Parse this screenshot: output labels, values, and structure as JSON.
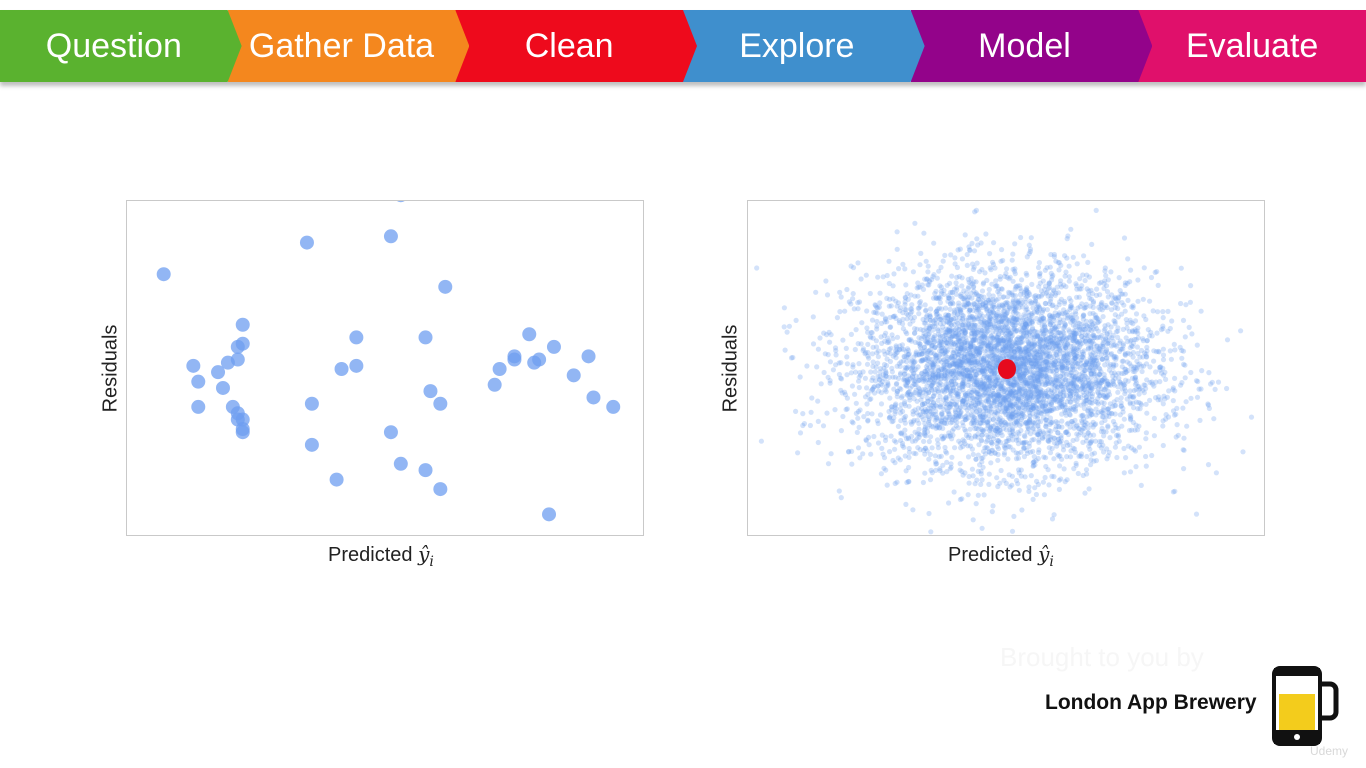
{
  "header": {
    "steps": [
      {
        "label": "Question",
        "color": "#5ab22f"
      },
      {
        "label": "Gather Data",
        "color": "#f4871e"
      },
      {
        "label": "Clean",
        "color": "#ee0a1c"
      },
      {
        "label": "Explore",
        "color": "#3f8fcd"
      },
      {
        "label": "Model",
        "color": "#93038a"
      },
      {
        "label": "Evaluate",
        "color": "#e0106b"
      }
    ]
  },
  "chart_data": [
    {
      "type": "scatter",
      "title": "",
      "xlabel": "Predicted",
      "ylabel": "Residuals",
      "grid": false,
      "xlim": [
        0,
        100
      ],
      "ylim": [
        -50,
        50
      ],
      "point_color": "#6d9ef0",
      "points": [
        [
          5,
          30
        ],
        [
          11,
          1
        ],
        [
          12,
          -12
        ],
        [
          12,
          -4
        ],
        [
          16,
          -1
        ],
        [
          17,
          -6
        ],
        [
          18,
          2
        ],
        [
          19,
          -12
        ],
        [
          20,
          -16
        ],
        [
          20,
          -14
        ],
        [
          20,
          3
        ],
        [
          20,
          7
        ],
        [
          21,
          -20
        ],
        [
          21,
          -19
        ],
        [
          21,
          -16
        ],
        [
          21,
          8
        ],
        [
          21,
          14
        ],
        [
          34,
          40
        ],
        [
          35,
          -11
        ],
        [
          35,
          -24
        ],
        [
          40,
          -35
        ],
        [
          41,
          0
        ],
        [
          44,
          1
        ],
        [
          44,
          10
        ],
        [
          51,
          42
        ],
        [
          51,
          -20
        ],
        [
          53,
          -30
        ],
        [
          53,
          55
        ],
        [
          58,
          -32
        ],
        [
          58,
          10
        ],
        [
          59,
          -7
        ],
        [
          61,
          -38
        ],
        [
          61,
          -11
        ],
        [
          62,
          26
        ],
        [
          72,
          -5
        ],
        [
          73,
          0
        ],
        [
          76,
          3
        ],
        [
          76,
          4
        ],
        [
          79,
          11
        ],
        [
          80,
          2
        ],
        [
          81,
          3
        ],
        [
          84,
          7
        ],
        [
          88,
          -2
        ],
        [
          91,
          4
        ],
        [
          92,
          -9
        ],
        [
          96,
          -12
        ],
        [
          83,
          -46
        ]
      ]
    },
    {
      "type": "scatter",
      "title": "",
      "xlabel": "Predicted",
      "ylabel": "Residuals",
      "grid": false,
      "xlim": [
        -3.5,
        3.5
      ],
      "ylim": [
        -3.5,
        3.5
      ],
      "point_color": "#6d9ef0",
      "n_points": 5000,
      "x_mean": 0,
      "x_sd": 1,
      "y_mean": 0,
      "y_sd": 1,
      "highlight": {
        "x": 0,
        "y": 0,
        "color": "#e60a1e"
      }
    }
  ],
  "labels": {
    "xvar": "ŷ",
    "xsub": "i"
  },
  "branding": {
    "brought_by": "Brought to you by",
    "name": "London App Brewery",
    "watermark": "Udemy"
  },
  "colors": {
    "logo_frame": "#111111",
    "logo_beer": "#f3cc1c",
    "logo_foam": "#ffffff"
  }
}
